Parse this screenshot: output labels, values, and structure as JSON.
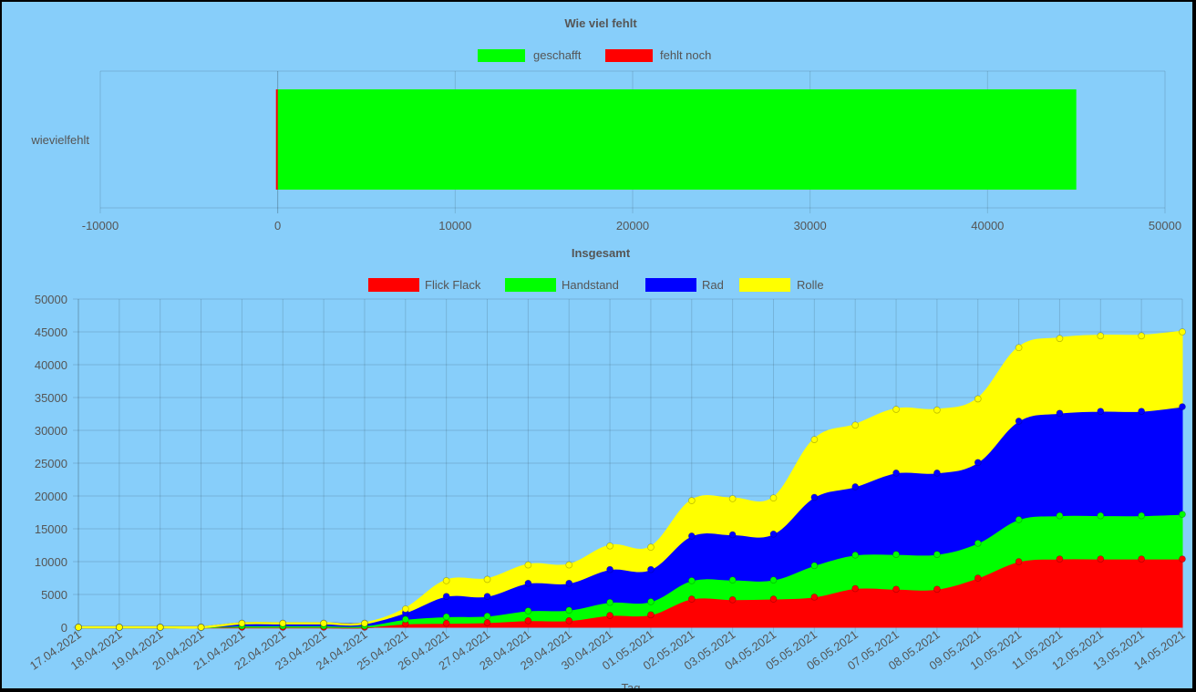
{
  "chart_data": [
    {
      "type": "bar",
      "orientation": "horizontal",
      "stacked": true,
      "title": "Wie viel fehlt",
      "categories": [
        "wievielfehlt"
      ],
      "series": [
        {
          "name": "geschafft",
          "color": "#00FF00",
          "values": [
            45000
          ]
        },
        {
          "name": "fehlt noch",
          "color": "#FF0000",
          "values": [
            -100
          ]
        }
      ],
      "xlim": [
        -10000,
        50000
      ],
      "xticks": [
        "-10000",
        "0",
        "10000",
        "20000",
        "30000",
        "40000",
        "50000"
      ],
      "legend_position": "top",
      "grid": true
    },
    {
      "type": "area",
      "stacked": true,
      "title": "Insgesamt",
      "xlabel": "Tag",
      "ylabel": "",
      "ylim": [
        0,
        50000
      ],
      "yticks": [
        "0",
        "5000",
        "10000",
        "15000",
        "20000",
        "25000",
        "30000",
        "35000",
        "40000",
        "45000",
        "50000"
      ],
      "legend_position": "top",
      "grid": true,
      "categories": [
        "17.04.2021",
        "18.04.2021",
        "19.04.2021",
        "20.04.2021",
        "21.04.2021",
        "22.04.2021",
        "23.04.2021",
        "24.04.2021",
        "25.04.2021",
        "26.04.2021",
        "27.04.2021",
        "28.04.2021",
        "29.04.2021",
        "30.04.2021",
        "01.05.2021",
        "02.05.2021",
        "03.05.2021",
        "04.05.2021",
        "05.05.2021",
        "06.05.2021",
        "07.05.2021",
        "08.05.2021",
        "09.05.2021",
        "10.05.2021",
        "11.05.2021",
        "12.05.2021",
        "13.05.2021",
        "14.05.2021"
      ],
      "series": [
        {
          "name": "Flick Flack",
          "color": "#FF0000",
          "values": [
            0,
            0,
            0,
            0,
            0,
            0,
            0,
            0,
            500,
            600,
            700,
            1000,
            1000,
            1800,
            1900,
            4300,
            4200,
            4300,
            4600,
            5900,
            5800,
            5800,
            7500,
            10000,
            10400,
            10400,
            10400,
            10400
          ]
        },
        {
          "name": "Handstand",
          "color": "#00FF00",
          "values": [
            0,
            0,
            0,
            0,
            200,
            200,
            200,
            200,
            700,
            1000,
            1000,
            1500,
            1600,
            2000,
            2000,
            2800,
            3000,
            2900,
            4800,
            5100,
            5300,
            5300,
            5300,
            6400,
            6600,
            6600,
            6600,
            6800
          ]
        },
        {
          "name": "Rad",
          "color": "#0000FF",
          "values": [
            0,
            0,
            0,
            0,
            400,
            400,
            400,
            400,
            1000,
            3100,
            3000,
            4200,
            4100,
            5000,
            4900,
            6800,
            6900,
            7000,
            10400,
            10400,
            12400,
            12400,
            12300,
            15000,
            15600,
            15900,
            15900,
            16400
          ]
        },
        {
          "name": "Rolle",
          "color": "#FFFF00",
          "values": [
            0,
            0,
            0,
            0,
            0,
            0,
            0,
            0,
            600,
            2400,
            2600,
            2800,
            2800,
            3600,
            3400,
            5400,
            5500,
            5500,
            8800,
            9400,
            9700,
            9600,
            9700,
            11200,
            11400,
            11500,
            11500,
            11400
          ]
        }
      ]
    }
  ]
}
